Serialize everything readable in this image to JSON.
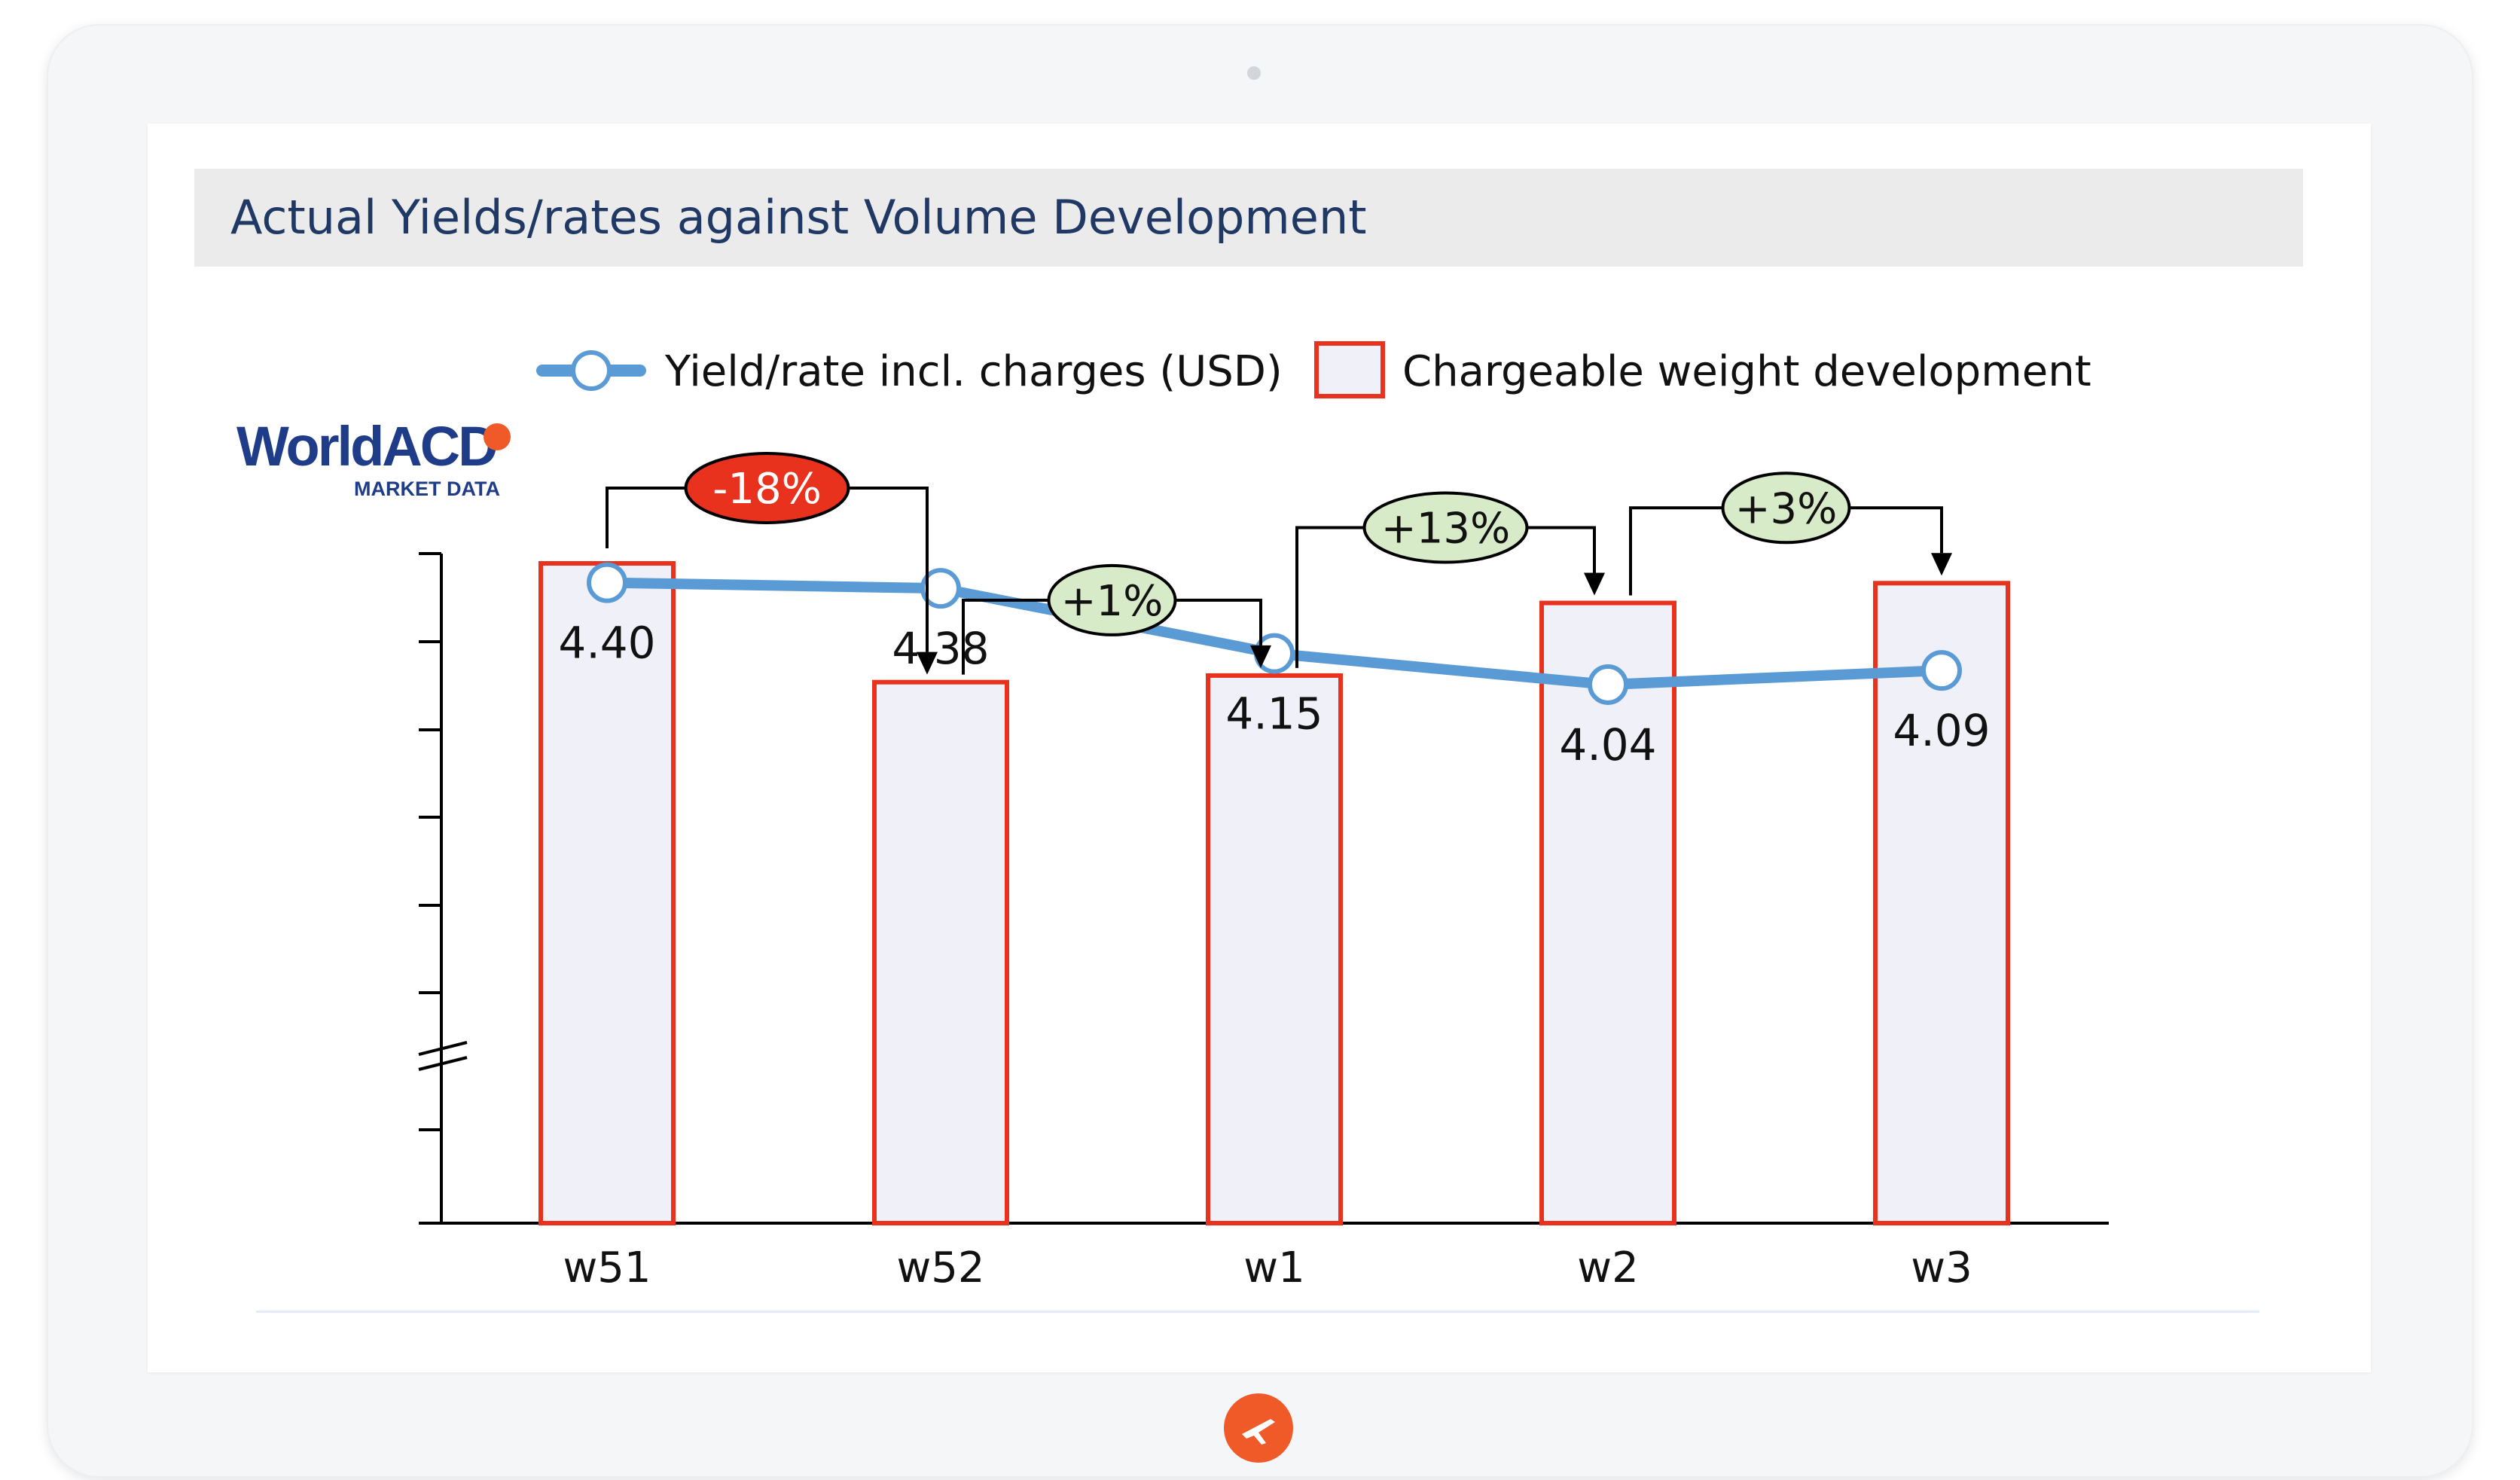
{
  "header": {
    "title": "Actual Yields/rates against Volume Development"
  },
  "brand": {
    "name": "WorldACD",
    "sub": "MARKET DATA",
    "logo_icon": "swoosh-icon"
  },
  "colors": {
    "accent": "#ef5a28",
    "bar_border": "#e8321e",
    "bar_fill": "#f0f0f8",
    "line": "#5b9bd5",
    "positive_bubble": "#d8ebc8",
    "negative_bubble": "#e8321e",
    "title_text": "#1f3864"
  },
  "chart_data": {
    "type": "bar",
    "title": "Actual Yields/rates against Volume Development",
    "categories": [
      "w51",
      "w52",
      "w1",
      "w2",
      "w3"
    ],
    "legend": [
      {
        "label": "Yield/rate incl. charges (USD)",
        "marker": "line-circle"
      },
      {
        "label": "Chargeable weight development",
        "marker": "box"
      }
    ],
    "series": [
      {
        "name": "Chargeable weight development",
        "type": "bar",
        "values": [
          100,
          82,
          83,
          94,
          97
        ]
      },
      {
        "name": "Yield/rate incl. charges (USD)",
        "type": "line",
        "values": [
          4.4,
          4.38,
          4.15,
          4.04,
          4.09
        ],
        "labels": [
          "4.40",
          "4.38",
          "4.15",
          "4.04",
          "4.09"
        ]
      }
    ],
    "bar_ylim": [
      0,
      100
    ],
    "line_ylim": [
      3.87,
      4.98
    ],
    "axis_break": true,
    "changes": [
      {
        "from": 0,
        "to": 1,
        "label": "-18%",
        "sign": "negative"
      },
      {
        "from": 1,
        "to": 2,
        "label": "+1%",
        "sign": "positive"
      },
      {
        "from": 2,
        "to": 3,
        "label": "+13%",
        "sign": "positive"
      },
      {
        "from": 3,
        "to": 4,
        "label": "+3%",
        "sign": "positive"
      }
    ],
    "grid": false,
    "legend_position": "top-center"
  }
}
